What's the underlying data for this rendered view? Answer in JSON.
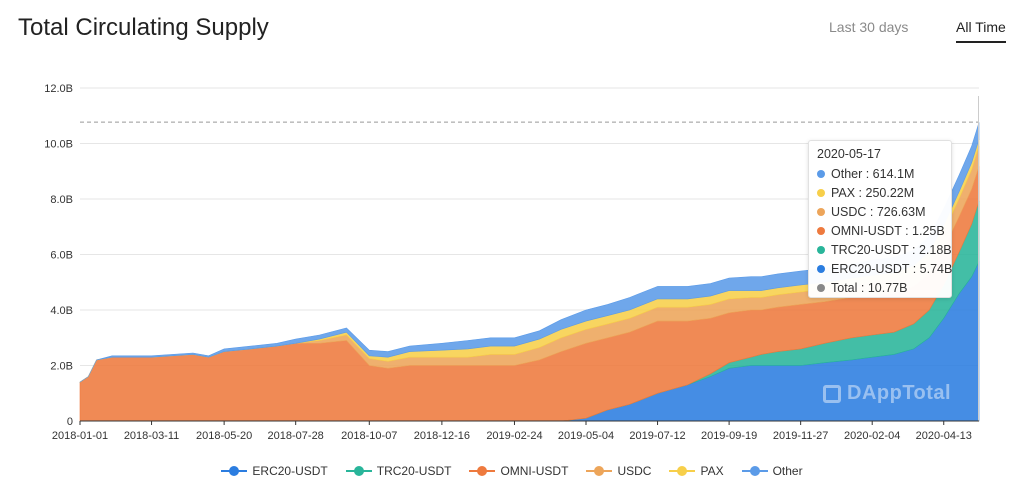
{
  "header": {
    "title": "Total Circulating Supply",
    "range_tabs": [
      {
        "label": "Last 30 days",
        "active": false
      },
      {
        "label": "All Time",
        "active": true
      }
    ]
  },
  "watermark": "DAppTotal",
  "tooltip": {
    "date": "2020-05-17",
    "rows": [
      {
        "label": "Other : 614.1M",
        "color": "#5b9be8"
      },
      {
        "label": "PAX : 250.22M",
        "color": "#f7cf4a"
      },
      {
        "label": "USDC : 726.63M",
        "color": "#eda55a"
      },
      {
        "label": "OMNI-USDT : 1.25B",
        "color": "#ee7a3e"
      },
      {
        "label": "TRC20-USDT : 2.18B",
        "color": "#29b59a"
      },
      {
        "label": "ERC20-USDT : 5.74B",
        "color": "#2b7de0"
      },
      {
        "label": "Total : 10.77B",
        "color": "#888888"
      }
    ]
  },
  "chart_data": {
    "type": "area",
    "stacked": true,
    "title": "Total Circulating Supply",
    "ylim": [
      0,
      12
    ],
    "y_unit": "B",
    "y_ticks": [
      "0",
      "2.0B",
      "4.0B",
      "6.0B",
      "8.0B",
      "10.0B",
      "12.0B"
    ],
    "y_tick_values": [
      0,
      2,
      4,
      6,
      8,
      10,
      12
    ],
    "x_tick_labels": [
      "2018-01-01",
      "2018-03-11",
      "2018-05-20",
      "2018-07-28",
      "2018-10-07",
      "2018-12-16",
      "2019-02-24",
      "2019-05-04",
      "2019-07-12",
      "2019-09-19",
      "2019-11-27",
      "2020-02-04",
      "2020-04-13"
    ],
    "x_start": "2018-01-01",
    "x_end": "2020-05-17",
    "grid": true,
    "legend_position": "bottom",
    "reference_line_value": 10.77,
    "x": [
      "2018-01-01",
      "2018-01-09",
      "2018-01-17",
      "2018-02-01",
      "2018-03-11",
      "2018-04-20",
      "2018-05-05",
      "2018-05-20",
      "2018-06-15",
      "2018-07-10",
      "2018-07-28",
      "2018-08-20",
      "2018-09-15",
      "2018-10-07",
      "2018-10-25",
      "2018-11-15",
      "2018-12-16",
      "2019-01-10",
      "2019-02-01",
      "2019-02-24",
      "2019-03-20",
      "2019-04-10",
      "2019-05-04",
      "2019-05-25",
      "2019-06-15",
      "2019-07-12",
      "2019-08-10",
      "2019-09-01",
      "2019-09-19",
      "2019-10-10",
      "2019-10-20",
      "2019-11-05",
      "2019-11-27",
      "2019-12-20",
      "2020-01-15",
      "2020-02-04",
      "2020-02-25",
      "2020-03-15",
      "2020-03-30",
      "2020-04-13",
      "2020-04-28",
      "2020-05-10",
      "2020-05-17"
    ],
    "series": [
      {
        "name": "ERC20-USDT",
        "color": "#2b7de0",
        "values": [
          0,
          0,
          0,
          0,
          0,
          0,
          0,
          0,
          0,
          0,
          0,
          0,
          0,
          0,
          0,
          0,
          0,
          0,
          0,
          0,
          0,
          0,
          0.1,
          0.4,
          0.6,
          1.0,
          1.3,
          1.6,
          1.9,
          2.0,
          2.0,
          2.0,
          2.0,
          2.1,
          2.2,
          2.3,
          2.4,
          2.6,
          3.0,
          3.7,
          4.6,
          5.2,
          5.74
        ]
      },
      {
        "name": "TRC20-USDT",
        "color": "#29b59a",
        "values": [
          0,
          0,
          0,
          0,
          0,
          0,
          0,
          0,
          0,
          0,
          0,
          0,
          0,
          0,
          0,
          0,
          0,
          0,
          0,
          0,
          0,
          0,
          0,
          0,
          0,
          0,
          0,
          0.1,
          0.2,
          0.3,
          0.4,
          0.5,
          0.6,
          0.7,
          0.8,
          0.8,
          0.8,
          0.9,
          1.0,
          1.2,
          1.5,
          1.9,
          2.18
        ]
      },
      {
        "name": "OMNI-USDT",
        "color": "#ee7a3e",
        "values": [
          1.4,
          1.6,
          2.2,
          2.3,
          2.3,
          2.4,
          2.3,
          2.5,
          2.6,
          2.7,
          2.8,
          2.8,
          2.9,
          2.0,
          1.9,
          2.0,
          2.0,
          2.0,
          2.0,
          2.0,
          2.2,
          2.5,
          2.7,
          2.6,
          2.6,
          2.6,
          2.3,
          2.0,
          1.8,
          1.7,
          1.6,
          1.6,
          1.6,
          1.5,
          1.45,
          1.4,
          1.4,
          1.35,
          1.3,
          1.3,
          1.28,
          1.26,
          1.25
        ]
      },
      {
        "name": "USDC",
        "color": "#eda55a",
        "values": [
          0,
          0,
          0,
          0,
          0,
          0,
          0,
          0,
          0,
          0,
          0,
          0.1,
          0.2,
          0.25,
          0.25,
          0.3,
          0.3,
          0.3,
          0.4,
          0.4,
          0.45,
          0.5,
          0.5,
          0.5,
          0.5,
          0.5,
          0.5,
          0.5,
          0.5,
          0.45,
          0.45,
          0.45,
          0.45,
          0.45,
          0.45,
          0.5,
          0.5,
          0.5,
          0.55,
          0.6,
          0.65,
          0.7,
          0.73
        ]
      },
      {
        "name": "PAX",
        "color": "#f7cf4a",
        "values": [
          0,
          0,
          0,
          0,
          0,
          0,
          0,
          0,
          0,
          0,
          0,
          0.05,
          0.1,
          0.1,
          0.15,
          0.2,
          0.25,
          0.3,
          0.3,
          0.3,
          0.3,
          0.3,
          0.3,
          0.3,
          0.3,
          0.3,
          0.3,
          0.3,
          0.3,
          0.25,
          0.25,
          0.25,
          0.25,
          0.25,
          0.25,
          0.25,
          0.25,
          0.25,
          0.25,
          0.25,
          0.25,
          0.25,
          0.25
        ]
      },
      {
        "name": "Other",
        "color": "#5b9be8",
        "values": [
          0,
          0,
          0,
          0.05,
          0.05,
          0.05,
          0.05,
          0.1,
          0.1,
          0.1,
          0.15,
          0.15,
          0.15,
          0.2,
          0.2,
          0.2,
          0.25,
          0.3,
          0.3,
          0.3,
          0.3,
          0.35,
          0.4,
          0.4,
          0.45,
          0.45,
          0.45,
          0.45,
          0.45,
          0.5,
          0.5,
          0.5,
          0.5,
          0.5,
          0.5,
          0.55,
          0.55,
          0.55,
          0.55,
          0.6,
          0.6,
          0.6,
          0.61
        ]
      }
    ]
  }
}
